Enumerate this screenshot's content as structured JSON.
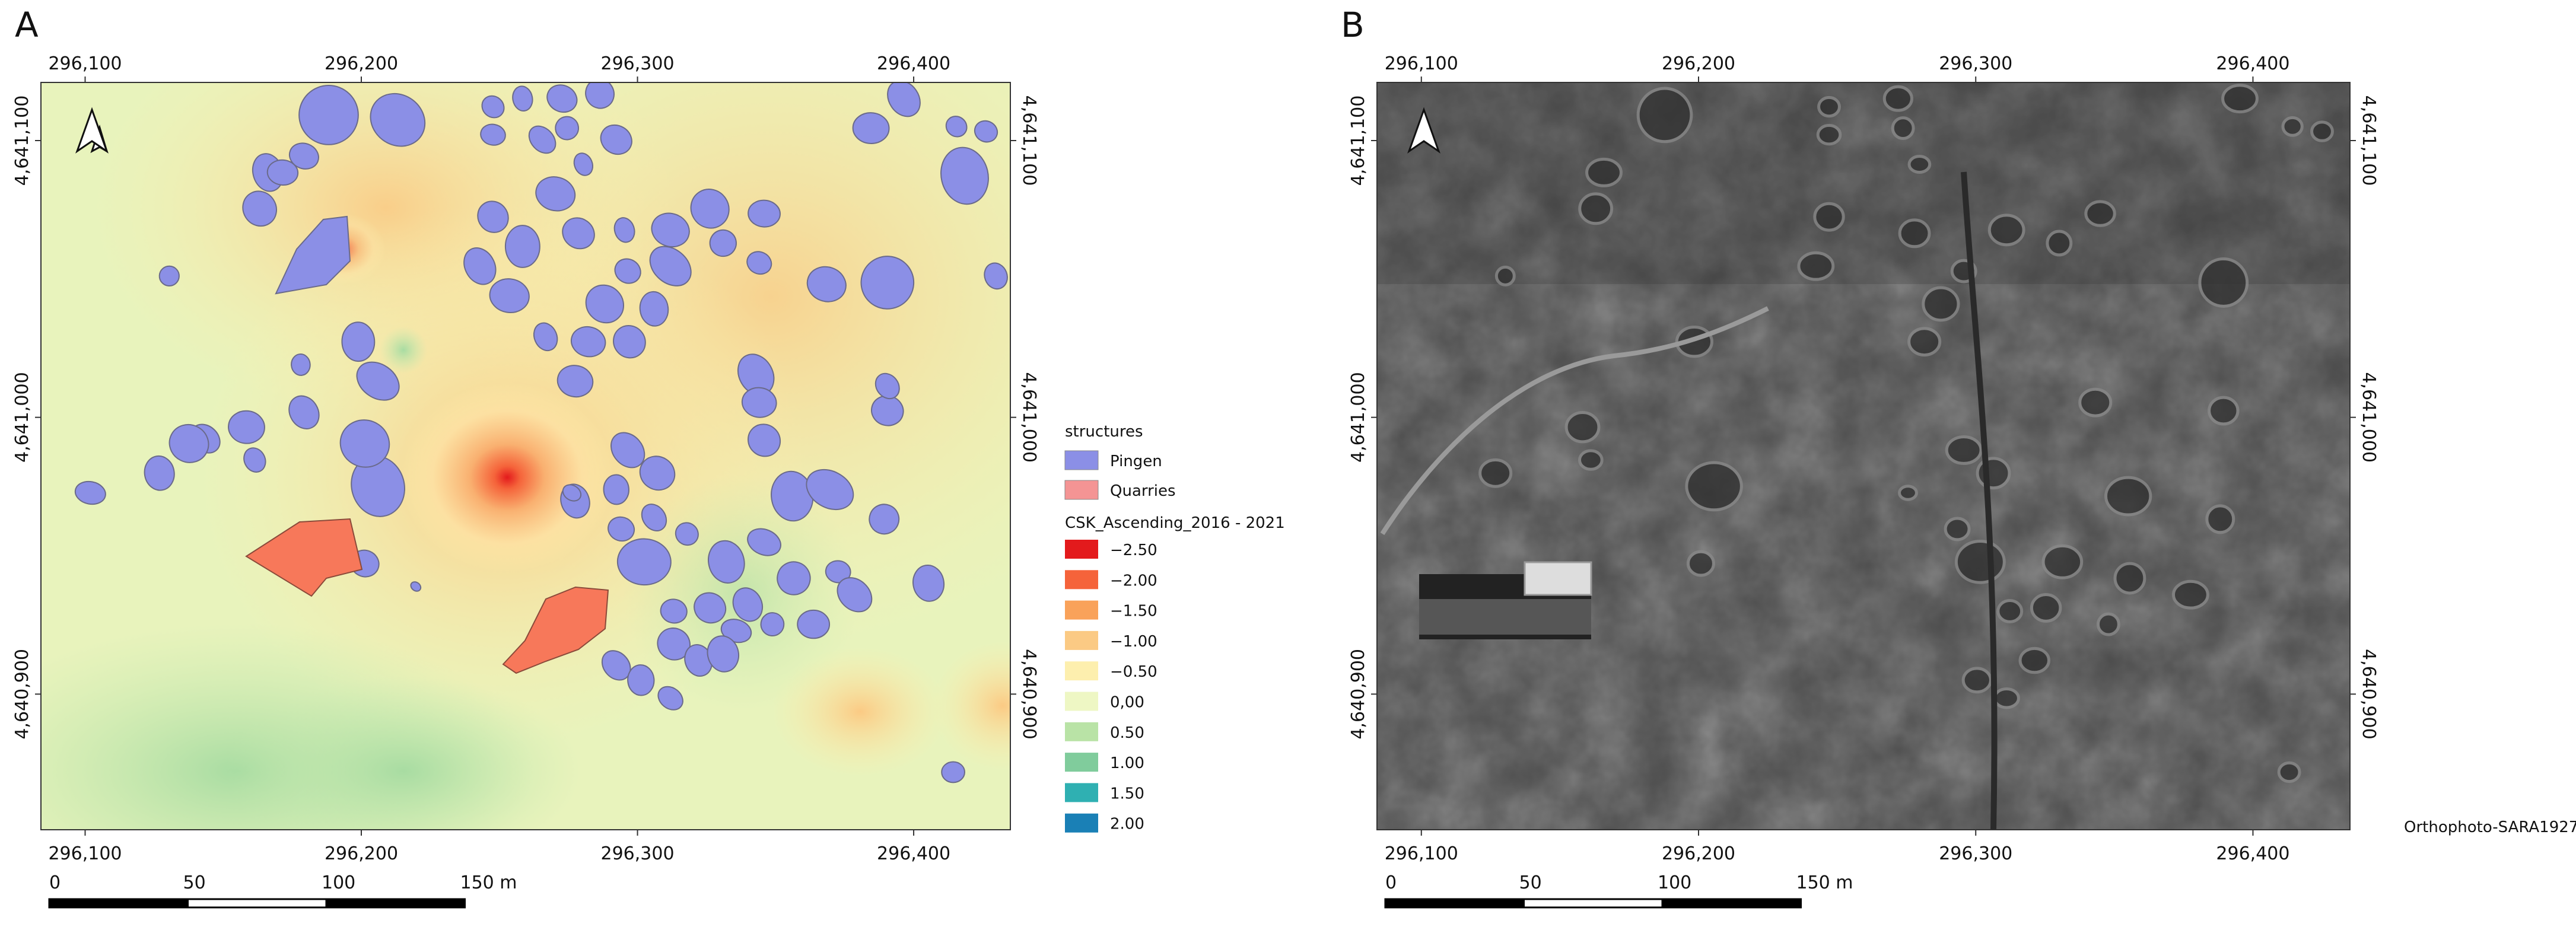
{
  "map_extent": {
    "xlim": [
      296084,
      296435
    ],
    "ylim": [
      4640851,
      4641121
    ]
  },
  "panels": [
    {
      "label": "A",
      "xticks": [
        {
          "value": 296100,
          "label": "296,100"
        },
        {
          "value": 296200,
          "label": "296,200"
        },
        {
          "value": 296300,
          "label": "296,300"
        },
        {
          "value": 296400,
          "label": "296,400"
        }
      ],
      "yticks": [
        {
          "value": 4641100,
          "label": "4,641,100"
        },
        {
          "value": 4641000,
          "label": "4,641,000"
        },
        {
          "value": 4640900,
          "label": "4,640,900"
        }
      ],
      "scale_labels": [
        "0",
        "50",
        "100",
        "150 m"
      ]
    },
    {
      "label": "B",
      "xticks": [
        {
          "value": 296100,
          "label": "296,100"
        },
        {
          "value": 296200,
          "label": "296,200"
        },
        {
          "value": 296300,
          "label": "296,300"
        },
        {
          "value": 296400,
          "label": "296,400"
        }
      ],
      "yticks": [
        {
          "value": 4641100,
          "label": "4,641,100"
        },
        {
          "value": 4641000,
          "label": "4,641,000"
        },
        {
          "value": 4640900,
          "label": "4,640,900"
        }
      ],
      "scale_labels": [
        "0",
        "50",
        "100",
        "150 m"
      ],
      "caption": "Orthophoto-SARA1927"
    }
  ],
  "legend": {
    "structures_title": "structures",
    "structures": [
      {
        "label": "Pingen",
        "color": "#8b8fe6"
      },
      {
        "label": "Quarries",
        "color": "#f49494"
      }
    ],
    "ramp_title": "CSK_Ascending_2016 - 2021",
    "ramp": [
      {
        "label": "−2.50",
        "color": "#e31a1c"
      },
      {
        "label": "−2.00",
        "color": "#f5633a"
      },
      {
        "label": "−1.50",
        "color": "#f9a25a"
      },
      {
        "label": "−1.00",
        "color": "#fbca84"
      },
      {
        "label": "−0.50",
        "color": "#fdefae"
      },
      {
        "label": "0,00",
        "color": "#eef7c4"
      },
      {
        "label": "0.50",
        "color": "#b9e3a6"
      },
      {
        "label": "1.00",
        "color": "#80cc9c"
      },
      {
        "label": "1.50",
        "color": "#2fb0b2"
      },
      {
        "label": "2.00",
        "color": "#1a80b6"
      }
    ]
  }
}
